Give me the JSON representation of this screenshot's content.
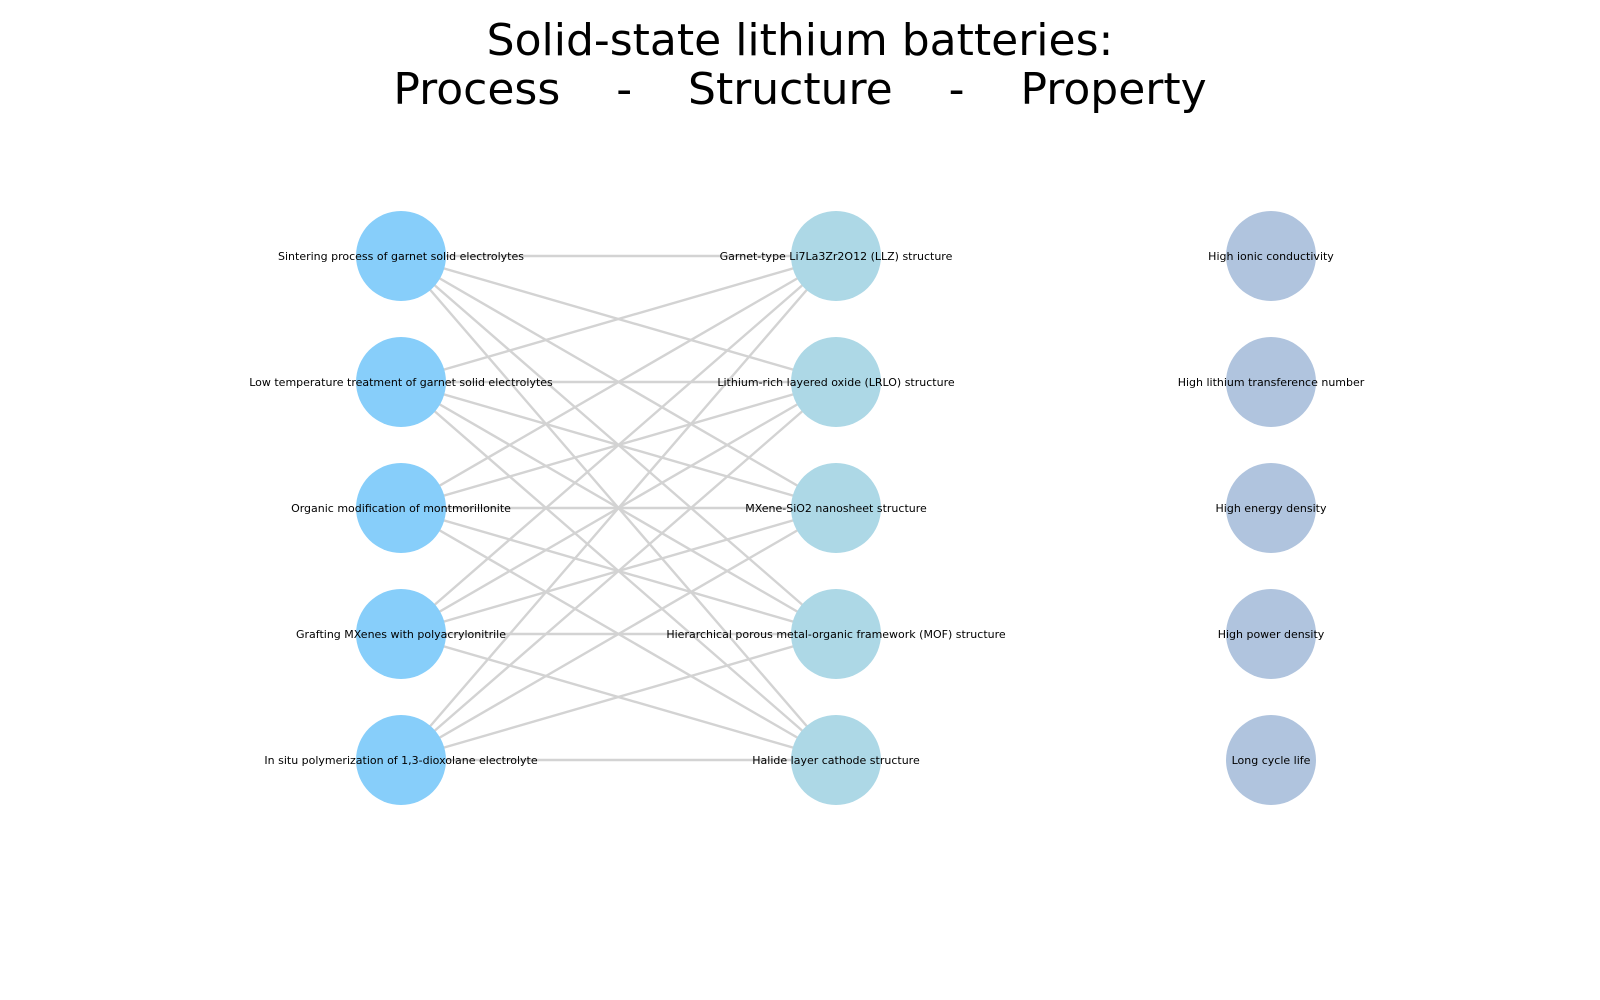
{
  "title": {
    "line1": "Solid-state lithium batteries:",
    "line2": "Process    -    Structure    -    Property"
  },
  "colors": {
    "process": "#87cefa",
    "structure": "#add8e6",
    "property": "#b0c4de",
    "edge": "#d3d3d3"
  },
  "processes": [
    "Sintering process of garnet solid electrolytes",
    "Low temperature treatment of garnet solid electrolytes",
    "Organic modification of montmorillonite",
    "Grafting MXenes with polyacrylonitrile",
    "In situ polymerization of 1,3-dioxolane electrolyte"
  ],
  "structures": [
    "Garnet-type Li7La3Zr2O12 (LLZ) structure",
    "Lithium-rich layered oxide (LRLO) structure",
    "MXene-SiO2 nanosheet structure",
    "Hierarchical porous metal-organic framework (MOF) structure",
    "Halide layer cathode structure"
  ],
  "properties": [
    "High ionic conductivity",
    "High lithium transference number",
    "High energy density",
    "High power density",
    "Long cycle life"
  ],
  "edges": [
    [
      0,
      0
    ],
    [
      0,
      1
    ],
    [
      0,
      2
    ],
    [
      0,
      3
    ],
    [
      0,
      4
    ],
    [
      1,
      0
    ],
    [
      1,
      1
    ],
    [
      1,
      2
    ],
    [
      1,
      3
    ],
    [
      1,
      4
    ],
    [
      2,
      0
    ],
    [
      2,
      1
    ],
    [
      2,
      2
    ],
    [
      2,
      3
    ],
    [
      2,
      4
    ],
    [
      3,
      0
    ],
    [
      3,
      1
    ],
    [
      3,
      2
    ],
    [
      3,
      3
    ],
    [
      3,
      4
    ],
    [
      4,
      0
    ],
    [
      4,
      1
    ],
    [
      4,
      2
    ],
    [
      4,
      3
    ],
    [
      4,
      4
    ]
  ]
}
